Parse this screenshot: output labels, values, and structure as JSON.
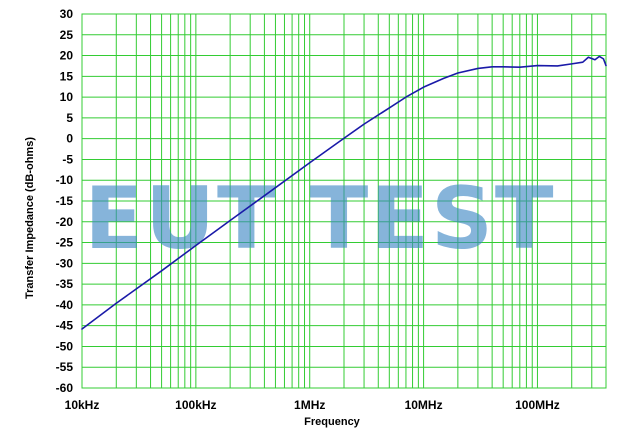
{
  "watermark": "EUT TEST",
  "chart_data": {
    "type": "line",
    "title": "",
    "xlabel": "Frequency",
    "ylabel": "Transfer Impedance (dB-ohms)",
    "x_scale": "log",
    "xlim": [
      10000,
      400000000
    ],
    "ylim": [
      -60,
      30
    ],
    "grid": true,
    "x_tick_values": [
      10000,
      100000,
      1000000,
      10000000,
      100000000
    ],
    "x_tick_labels": [
      "10kHz",
      "100kHz",
      "1MHz",
      "10MHz",
      "100MHz"
    ],
    "y_ticks": [
      30,
      25,
      20,
      15,
      10,
      5,
      0,
      -5,
      -10,
      -15,
      -20,
      -25,
      -30,
      -35,
      -40,
      -45,
      -50,
      -55,
      -60
    ],
    "series": [
      {
        "x": [
          10000,
          20000,
          50000,
          100000,
          200000,
          500000,
          1000000,
          2000000,
          3000000,
          5000000,
          7000000,
          10000000,
          15000000,
          20000000,
          30000000,
          40000000,
          50000000,
          70000000,
          100000000,
          150000000,
          200000000,
          250000000,
          280000000,
          320000000,
          350000000,
          380000000,
          400000000
        ],
        "y": [
          -45.8,
          -39.6,
          -31.8,
          -25.7,
          -19.7,
          -11.8,
          -5.8,
          0.1,
          3.5,
          7.4,
          10.0,
          12.4,
          14.5,
          15.8,
          16.9,
          17.3,
          17.3,
          17.2,
          17.6,
          17.5,
          18.0,
          18.4,
          19.6,
          19.0,
          19.8,
          19.2,
          17.6
        ]
      }
    ],
    "colors": {
      "line": "#1a1aa8",
      "grid": "#33cc33",
      "plot_background": "#ffffff"
    }
  }
}
